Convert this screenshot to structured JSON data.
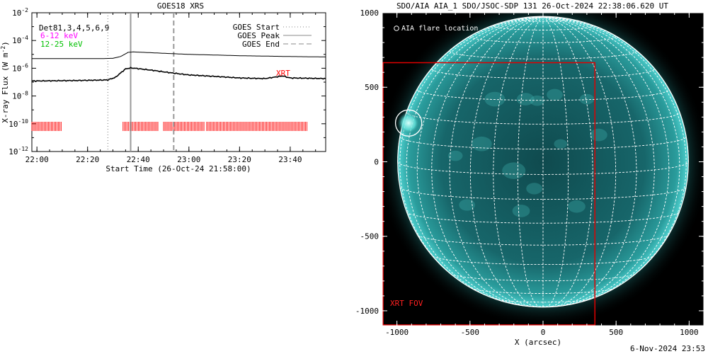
{
  "left_panel": {
    "title": "GOES18 XRS",
    "ylabel": "X-ray Flux (W m",
    "ylabel_sup": "-2",
    "ylabel_close": ")",
    "xlabel": "Start Time (26-Oct-24 21:58:00)",
    "detectors_label": "Det81,3,4,5,6,9",
    "band_low_label": "6-12 keV",
    "band_low_color": "#ff00ff",
    "band_high_label": "12-25 keV",
    "band_high_color": "#00c000",
    "legend": [
      {
        "label": "GOES Start",
        "style": "dotted"
      },
      {
        "label": "GOES Peak",
        "style": "solid"
      },
      {
        "label": "GOES End",
        "style": "dashed"
      }
    ],
    "xrt_label": "XRT",
    "xrt_color": "#ff0000",
    "y_tick_labels": [
      {
        "base": "10",
        "exp": "-2"
      },
      {
        "base": "10",
        "exp": "-4"
      },
      {
        "base": "10",
        "exp": "-6"
      },
      {
        "base": "10",
        "exp": "-8"
      },
      {
        "base": "10",
        "exp": "-10"
      },
      {
        "base": "10",
        "exp": "-12"
      }
    ],
    "x_tick_labels": [
      "22:00",
      "22:20",
      "22:40",
      "23:00",
      "23:20",
      "23:40"
    ]
  },
  "right_panel": {
    "title": "SDO/AIA AIA_1 SDO/JSOC-SDP 131 26-Oct-2024 22:38:06.620 UT",
    "flare_location_label": "AIA flare location",
    "xrt_fov_label": "XRT FOV",
    "xlabel": "X (arcsec)",
    "x_tick_labels": [
      "-1000",
      "-500",
      "0",
      "500",
      "1000"
    ],
    "y_tick_labels": [
      "1000",
      "500",
      "0",
      "-500",
      "-1000"
    ],
    "image_colors": {
      "disk": "#1a6e72",
      "limb": "#3fc6c4",
      "background": "#000000",
      "grid": "#ffffff"
    }
  },
  "footer_date": "6-Nov-2024 23:53",
  "chart_data": [
    {
      "type": "line",
      "title": "GOES18 XRS",
      "xlabel": "Start Time (26-Oct-24 21:58:00)",
      "ylabel": "X-ray Flux (W m-2)",
      "y_scale": "log",
      "ylim": [
        1e-12,
        0.01
      ],
      "xlim_minutes_after_start": [
        0,
        116
      ],
      "start_time": "21:58:00",
      "grid": false,
      "legend_position": "top-right",
      "series": [
        {
          "name": "",
          "x_time": [
            "21:58",
            "22:10",
            "22:20",
            "22:26",
            "22:30",
            "22:33",
            "22:36",
            "22:38",
            "22:42",
            "22:50",
            "23:00",
            "23:10",
            "23:20",
            "23:30",
            "23:40",
            "23:54"
          ],
          "y": [
            5e-06,
            5e-06,
            5e-06,
            5e-06,
            5.2e-06,
            7e-06,
            1.4e-05,
            1.5e-05,
            1.4e-05,
            1.2e-05,
            1e-05,
            9e-06,
            8e-06,
            7.5e-06,
            7e-06,
            6.5e-06
          ]
        },
        {
          "name": "",
          "x_time": [
            "21:58",
            "22:05",
            "22:15",
            "22:25",
            "22:28",
            "22:31",
            "22:33",
            "22:35",
            "22:37",
            "22:39",
            "22:42",
            "22:46",
            "22:50",
            "22:55",
            "23:00",
            "23:10",
            "23:20",
            "23:30",
            "23:34",
            "23:37",
            "23:40",
            "23:54"
          ],
          "y": [
            1.2e-07,
            1.25e-07,
            1.3e-07,
            1.4e-07,
            1.45e-07,
            2.2e-07,
            4.5e-07,
            9e-07,
            1.05e-06,
            9.8e-07,
            8.5e-07,
            7e-07,
            5.5e-07,
            4.2e-07,
            3.3e-07,
            2.6e-07,
            2e-07,
            1.8e-07,
            2.3e-07,
            2.8e-07,
            2e-07,
            1.8e-07
          ]
        }
      ],
      "vertical_lines": [
        {
          "label": "GOES Start",
          "time": "22:28",
          "style": "dotted"
        },
        {
          "label": "GOES Peak",
          "time": "22:37",
          "style": "solid"
        },
        {
          "label": "GOES End",
          "time": "22:54",
          "style": "dashed"
        }
      ],
      "xrt_coverage_intervals": [
        {
          "start": "21:58",
          "end": "22:10"
        },
        {
          "start": "22:34",
          "end": "22:48"
        },
        {
          "start": "22:50",
          "end": "23:06"
        },
        {
          "start": "23:07",
          "end": "23:47"
        }
      ]
    },
    {
      "type": "heatmap",
      "title": "SDO/AIA AIA_1 SDO/JSOC-SDP 131 26-Oct-2024 22:38:06.620 UT",
      "xlabel": "X (arcsec)",
      "ylabel": "",
      "xlim": [
        -1100,
        1100
      ],
      "ylim": [
        -1100,
        1000
      ],
      "solar_radius_arcsec": 985,
      "grid_spacing_deg": 10,
      "b0_deg": 5,
      "flare_location": {
        "x": -920,
        "y": 260,
        "radius": 90
      },
      "xrt_fov": {
        "x_min": -1095,
        "x_max": 355,
        "y_min": -1095,
        "y_max": 665
      }
    }
  ]
}
